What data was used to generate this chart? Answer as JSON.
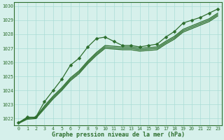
{
  "title": "Graphe pression niveau de la mer (hPa)",
  "bg_color": "#d6f0eb",
  "grid_color": "#aaddd6",
  "line_color": "#2d6e2d",
  "markersize": 2.5,
  "linewidth": 0.9,
  "xlim": [
    -0.5,
    23.5
  ],
  "ylim": [
    1021.5,
    1030.3
  ],
  "yticks": [
    1022,
    1023,
    1024,
    1025,
    1026,
    1027,
    1028,
    1029,
    1030
  ],
  "xticks": [
    0,
    1,
    2,
    3,
    4,
    5,
    6,
    7,
    8,
    9,
    10,
    11,
    12,
    13,
    14,
    15,
    16,
    17,
    18,
    19,
    20,
    21,
    22,
    23
  ],
  "series_with_markers": [
    [
      1021.7,
      1022.1,
      1022.1,
      1023.2,
      1024.0,
      1024.8,
      1025.8,
      1026.3,
      1027.1,
      1027.7,
      1027.8,
      1027.5,
      1027.2,
      1027.2,
      1027.1,
      1027.2,
      1027.3,
      1027.8,
      1028.2,
      1028.8,
      1029.0,
      1029.2,
      1029.5,
      1029.8
    ]
  ],
  "series_no_marker": [
    [
      1021.7,
      1022.05,
      1022.1,
      1022.9,
      1023.6,
      1024.2,
      1024.9,
      1025.4,
      1026.1,
      1026.7,
      1027.2,
      1027.15,
      1027.1,
      1027.1,
      1027.0,
      1027.05,
      1027.1,
      1027.5,
      1027.85,
      1028.35,
      1028.6,
      1028.85,
      1029.1,
      1029.5
    ],
    [
      1021.7,
      1022.0,
      1022.05,
      1022.8,
      1023.5,
      1024.1,
      1024.8,
      1025.3,
      1026.0,
      1026.6,
      1027.1,
      1027.05,
      1027.0,
      1027.0,
      1026.9,
      1026.95,
      1027.0,
      1027.4,
      1027.75,
      1028.25,
      1028.5,
      1028.75,
      1029.0,
      1029.4
    ],
    [
      1021.65,
      1021.95,
      1022.0,
      1022.7,
      1023.4,
      1024.0,
      1024.7,
      1025.2,
      1025.9,
      1026.5,
      1027.0,
      1026.95,
      1026.9,
      1026.9,
      1026.8,
      1026.85,
      1026.9,
      1027.3,
      1027.65,
      1028.15,
      1028.4,
      1028.65,
      1028.9,
      1029.3
    ]
  ]
}
